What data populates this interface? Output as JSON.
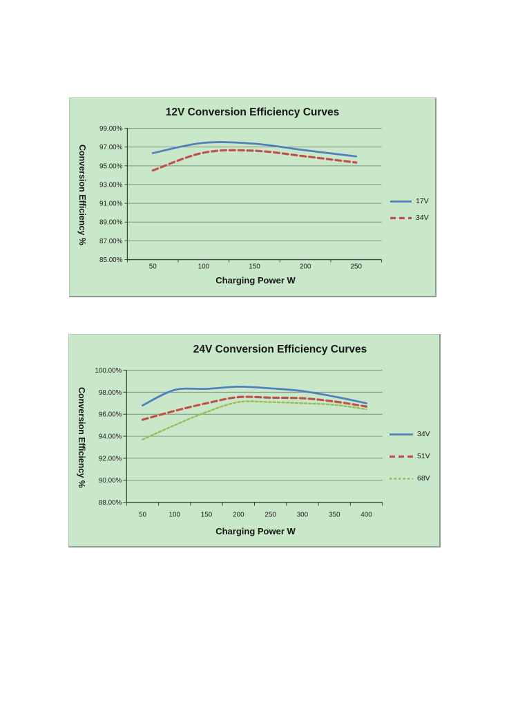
{
  "page": {
    "background": "#ffffff"
  },
  "style": {
    "plot_background": "#c9e7c9",
    "grid_color": "#7e8e7e",
    "axis_color": "#3f3f3f",
    "text_color": "#1c1c1c"
  },
  "chart_data": [
    {
      "type": "line",
      "title": "12V Conversion Efficiency Curves",
      "xlabel": "Charging Power W",
      "ylabel": "Conversion Efficiency %",
      "categories": [
        "50",
        "100",
        "150",
        "200",
        "250"
      ],
      "series": [
        {
          "name": "17V",
          "color": "#4f81bd",
          "line_style": "solid",
          "values": [
            96.35,
            97.45,
            97.35,
            96.65,
            96.0
          ]
        },
        {
          "name": "34V",
          "color": "#c0504d",
          "line_style": "long-dash",
          "values": [
            94.5,
            96.4,
            96.6,
            96.0,
            95.35
          ]
        }
      ],
      "ylim": [
        85,
        99
      ],
      "ytick_step": 2,
      "ytick_suffix": "%",
      "grid": true,
      "legend_position": "right"
    },
    {
      "type": "line",
      "title": "24V Conversion Efficiency Curves",
      "xlabel": "Charging Power W",
      "ylabel": "Conversion Efficiency %",
      "categories": [
        "50",
        "100",
        "150",
        "200",
        "250",
        "300",
        "350",
        "400"
      ],
      "series": [
        {
          "name": "34V",
          "color": "#4f81bd",
          "line_style": "solid",
          "values": [
            96.8,
            98.2,
            98.3,
            98.5,
            98.35,
            98.1,
            97.6,
            97.0
          ]
        },
        {
          "name": "51V",
          "color": "#c0504d",
          "line_style": "long-dash",
          "values": [
            95.5,
            96.3,
            97.0,
            97.55,
            97.5,
            97.45,
            97.15,
            96.7
          ]
        },
        {
          "name": "68V",
          "color": "#9bbb59",
          "line_style": "short-dash",
          "values": [
            93.7,
            95.0,
            96.2,
            97.1,
            97.1,
            97.0,
            96.85,
            96.45
          ]
        }
      ],
      "ylim": [
        88,
        100
      ],
      "ytick_step": 2,
      "ytick_suffix": "%",
      "grid": true,
      "legend_position": "right"
    }
  ]
}
